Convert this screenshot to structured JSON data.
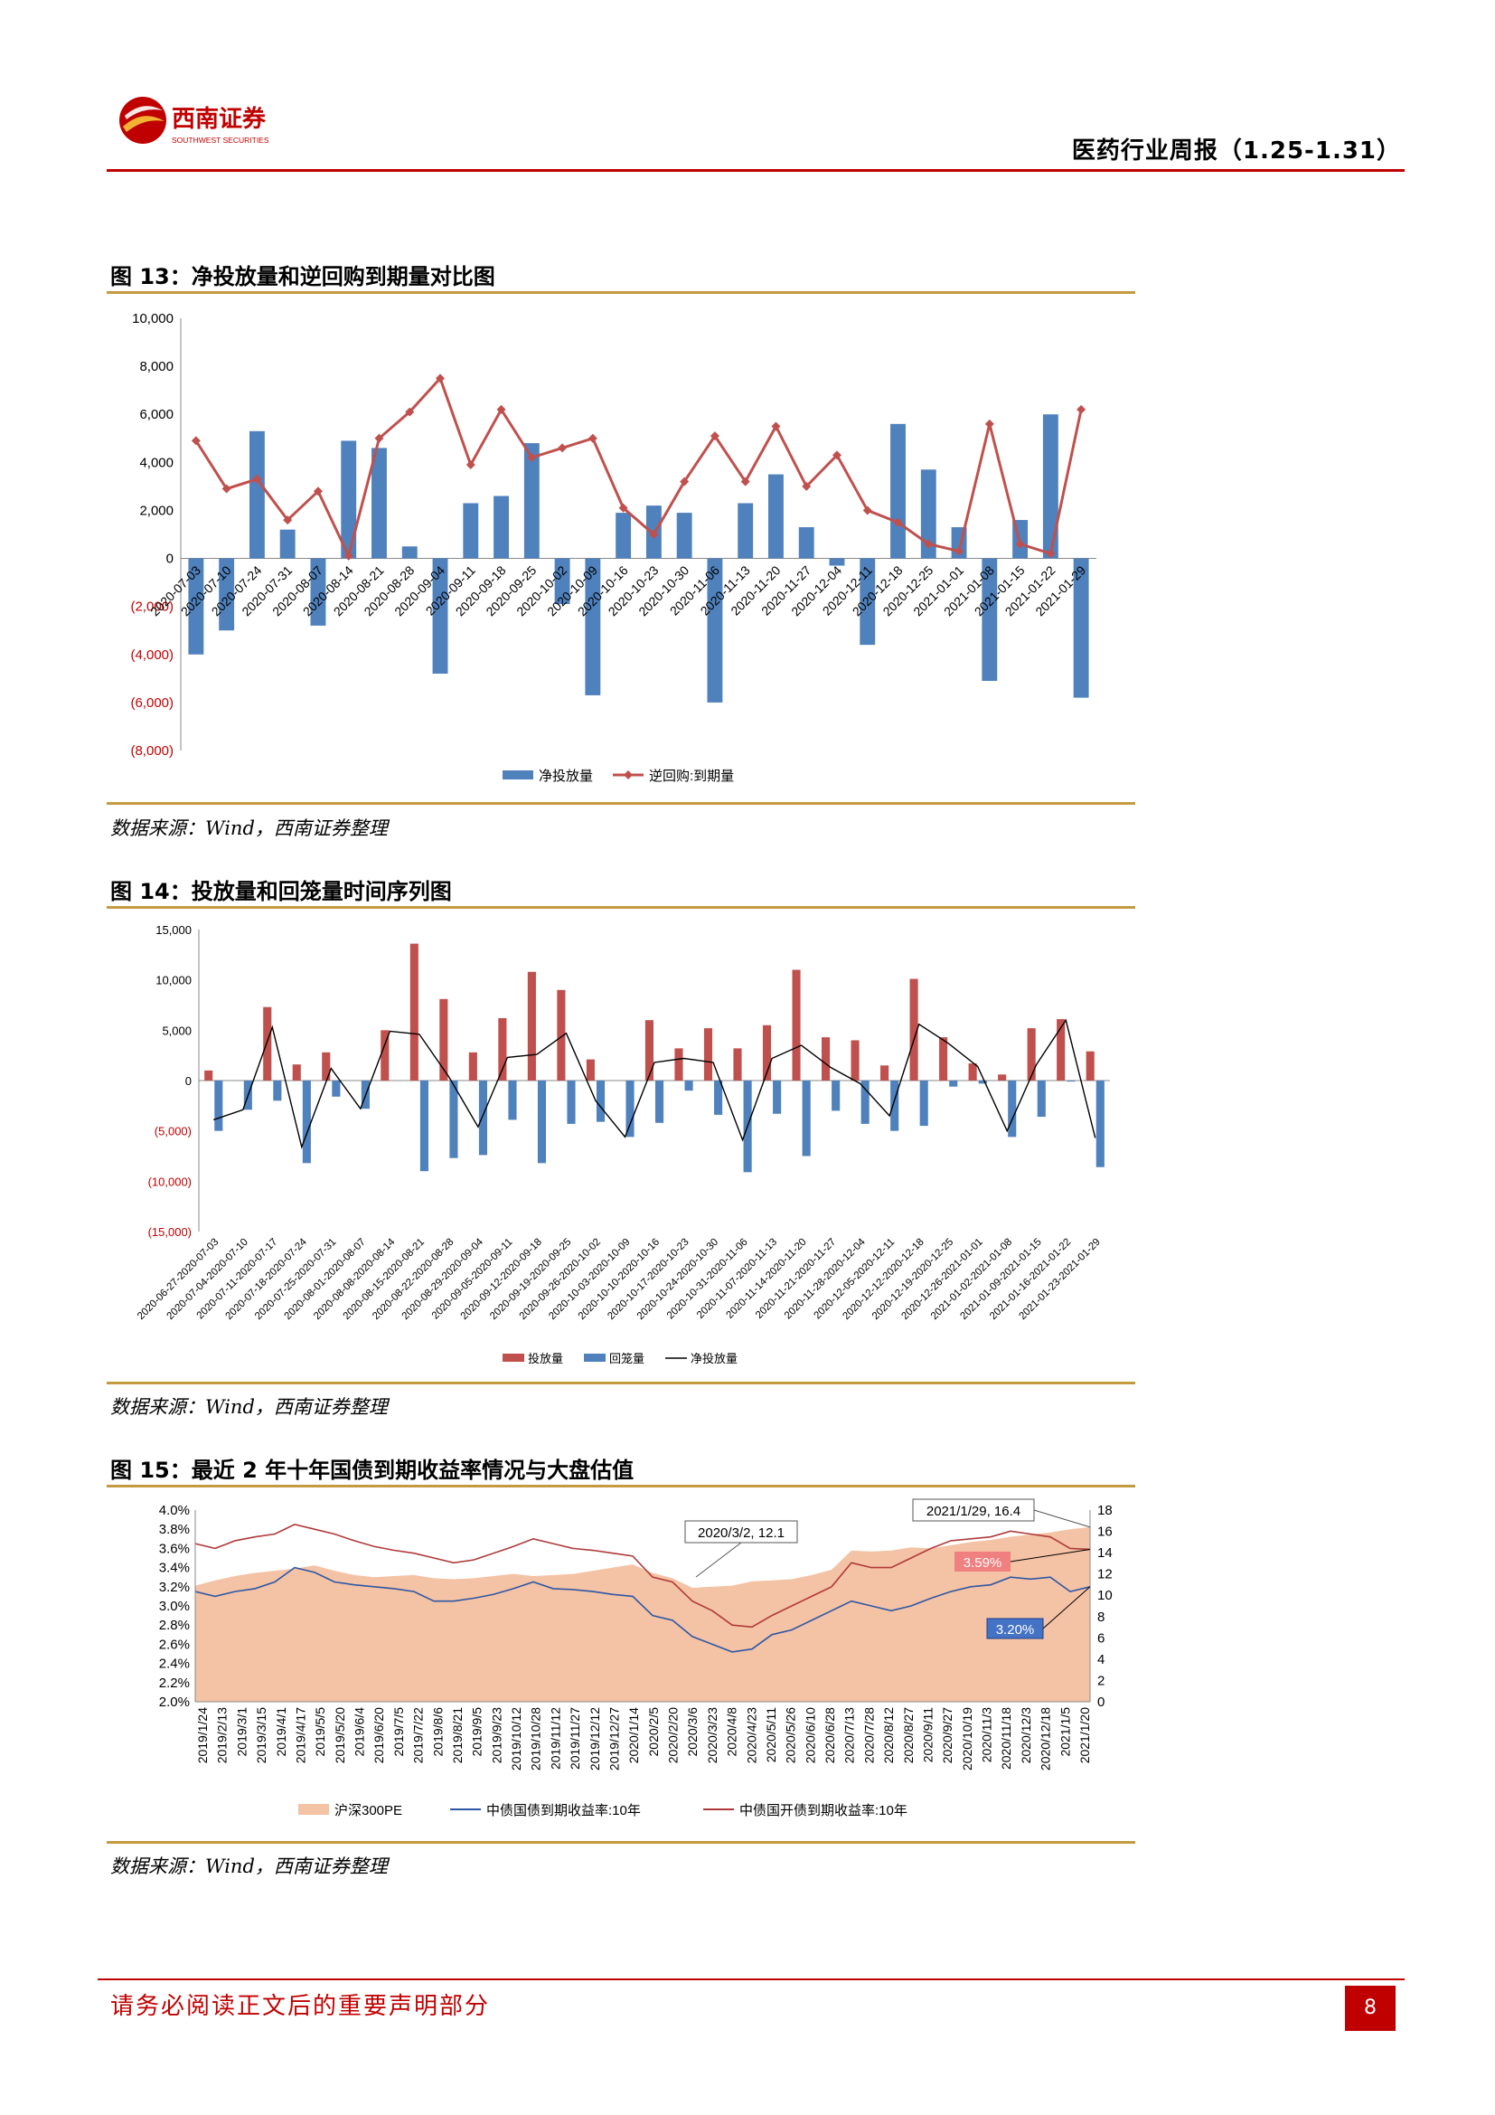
{
  "header": {
    "brand_cn": "西南证券",
    "brand_en": "SOUTHWEST SECURITIES",
    "title": "医药行业周报（1.25-1.31）"
  },
  "figures": [
    {
      "title": "图 13：净投放量和逆回购到期量对比图",
      "source": "数据来源：Wind，西南证券整理",
      "chart_data": {
        "type": "bar",
        "categories": [
          "2020-07-03",
          "2020-07-10",
          "2020-07-24",
          "2020-07-31",
          "2020-08-07",
          "2020-08-14",
          "2020-08-21",
          "2020-08-28",
          "2020-09-04",
          "2020-09-11",
          "2020-09-18",
          "2020-09-25",
          "2020-10-02",
          "2020-10-09",
          "2020-10-16",
          "2020-10-23",
          "2020-10-30",
          "2020-11-06",
          "2020-11-13",
          "2020-11-20",
          "2020-11-27",
          "2020-12-04",
          "2020-12-11",
          "2020-12-18",
          "2020-12-25",
          "2021-01-01",
          "2021-01-08",
          "2021-01-15",
          "2021-01-22",
          "2021-01-29"
        ],
        "y_ticks": [
          "10,000",
          "8,000",
          "6,000",
          "4,000",
          "2,000",
          "0",
          "(2,000)",
          "(4,000)",
          "(6,000)",
          "(8,000)"
        ],
        "ylim": [
          -8000,
          10000
        ],
        "series": [
          {
            "name": "净投放量",
            "kind": "bar",
            "color": "#4f81bd",
            "values": [
              -4000,
              -3000,
              5300,
              1200,
              -2800,
              4900,
              4600,
              500,
              -4800,
              2300,
              2600,
              4800,
              -1900,
              -5700,
              1900,
              2200,
              1900,
              -6000,
              2300,
              3500,
              1300,
              -300,
              -3600,
              5600,
              3700,
              1300,
              -5100,
              1600,
              6000,
              -5800
            ]
          },
          {
            "name": "逆回购:到期量",
            "kind": "line",
            "color": "#c0504d",
            "values": [
              4900,
              2900,
              3300,
              1600,
              2800,
              100,
              5000,
              6100,
              7500,
              3900,
              6200,
              4200,
              4600,
              5000,
              2100,
              1000,
              3200,
              5100,
              3200,
              5500,
              3000,
              4300,
              2000,
              1500,
              600,
              300,
              5600,
              600,
              200,
              6200
            ]
          }
        ],
        "legend": "bottom"
      }
    },
    {
      "title": "图 14：投放量和回笼量时间序列图",
      "source": "数据来源：Wind，西南证券整理",
      "chart_data": {
        "type": "bar",
        "categories": [
          "2020-06-27-2020-07-03",
          "2020-07-04-2020-07-10",
          "2020-07-11-2020-07-17",
          "2020-07-18-2020-07-24",
          "2020-07-25-2020-07-31",
          "2020-08-01-2020-08-07",
          "2020-08-08-2020-08-14",
          "2020-08-15-2020-08-21",
          "2020-08-22-2020-08-28",
          "2020-08-29-2020-09-04",
          "2020-09-05-2020-09-11",
          "2020-09-12-2020-09-18",
          "2020-09-19-2020-09-25",
          "2020-09-26-2020-10-02",
          "2020-10-03-2020-10-09",
          "2020-10-10-2020-10-16",
          "2020-10-17-2020-10-23",
          "2020-10-24-2020-10-30",
          "2020-10-31-2020-11-06",
          "2020-11-07-2020-11-13",
          "2020-11-14-2020-11-20",
          "2020-11-21-2020-11-27",
          "2020-11-28-2020-12-04",
          "2020-12-05-2020-12-11",
          "2020-12-12-2020-12-18",
          "2020-12-19-2020-12-25",
          "2020-12-26-2021-01-01",
          "2021-01-02-2021-01-08",
          "2021-01-09-2021-01-15",
          "2021-01-16-2021-01-22",
          "2021-01-23-2021-01-29"
        ],
        "y_ticks": [
          "15,000",
          "10,000",
          "5,000",
          "0",
          "(5,000)",
          "(10,000)",
          "(15,000)"
        ],
        "ylim": [
          -15000,
          15000
        ],
        "series": [
          {
            "name": "投放量",
            "kind": "bar",
            "color": "#c0504d",
            "values": [
              1000,
              0,
              7300,
              1600,
              2800,
              0,
              5000,
              13600,
              8100,
              2800,
              6200,
              10800,
              9000,
              2100,
              0,
              6000,
              3200,
              5200,
              3200,
              5500,
              11000,
              4300,
              4000,
              1500,
              10100,
              4300,
              1700,
              600,
              5200,
              6100,
              2900
            ]
          },
          {
            "name": "回笼量",
            "kind": "bar",
            "color": "#4f81bd",
            "values": [
              -5000,
              -2900,
              -2000,
              -8200,
              -1600,
              -2800,
              0,
              -9000,
              -7700,
              -7400,
              -3900,
              -8200,
              -4300,
              -4100,
              -5600,
              -4200,
              -1000,
              -3400,
              -9100,
              -3300,
              -7500,
              -3000,
              -4300,
              -5000,
              -4500,
              -600,
              -300,
              -5600,
              -3600,
              -100,
              -8600
            ]
          },
          {
            "name": "净投放量",
            "kind": "line",
            "color": "#000000",
            "values": [
              -3900,
              -2900,
              5300,
              -6600,
              1200,
              -2800,
              4900,
              4600,
              400,
              -4600,
              2300,
              2600,
              4700,
              -2000,
              -5600,
              1800,
              2200,
              1800,
              -5900,
              2200,
              3500,
              1300,
              -300,
              -3500,
              5600,
              3700,
              1400,
              -5000,
              1600,
              6000,
              -5700
            ]
          }
        ],
        "legend": "bottom"
      }
    },
    {
      "title": "图 15：最近 2 年十年国债到期收益率情况与大盘估值",
      "source": "数据来源：Wind，西南证券整理",
      "chart_data": {
        "type": "line",
        "x_ticks": [
          "2019/1/24",
          "2019/2/13",
          "2019/3/1",
          "2019/3/15",
          "2019/4/1",
          "2019/4/17",
          "2019/5/5",
          "2019/5/20",
          "2019/6/4",
          "2019/6/20",
          "2019/7/5",
          "2019/7/22",
          "2019/8/6",
          "2019/8/21",
          "2019/9/5",
          "2019/9/23",
          "2019/10/12",
          "2019/10/28",
          "2019/11/12",
          "2019/11/27",
          "2019/12/12",
          "2019/12/27",
          "2020/1/14",
          "2020/2/5",
          "2020/2/20",
          "2020/3/6",
          "2020/3/23",
          "2020/4/8",
          "2020/4/23",
          "2020/5/11",
          "2020/5/26",
          "2020/6/10",
          "2020/6/28",
          "2020/7/13",
          "2020/7/28",
          "2020/8/12",
          "2020/8/27",
          "2020/9/11",
          "2020/9/27",
          "2020/10/19",
          "2020/11/3",
          "2020/11/18",
          "2020/12/3",
          "2020/12/18",
          "2021/1/5",
          "2021/1/20"
        ],
        "y_left_ticks": [
          "4.0%",
          "3.8%",
          "3.6%",
          "3.4%",
          "3.2%",
          "3.0%",
          "2.8%",
          "2.6%",
          "2.4%",
          "2.2%",
          "2.0%"
        ],
        "y_right_ticks": [
          "18",
          "16",
          "14",
          "12",
          "10",
          "8",
          "6",
          "4",
          "2",
          "0"
        ],
        "ylim_left": [
          2.0,
          4.0
        ],
        "ylim_right": [
          0,
          18
        ],
        "series": [
          {
            "name": "沪深300PE",
            "kind": "area",
            "axis": "right",
            "color": "#f4c2a4",
            "values": [
              10.9,
              11.4,
              11.8,
              12.1,
              12.3,
              12.5,
              12.8,
              12.3,
              11.9,
              11.7,
              11.8,
              11.9,
              11.6,
              11.5,
              11.6,
              11.8,
              12.0,
              11.8,
              11.9,
              12.0,
              12.3,
              12.6,
              12.9,
              12.1,
              11.6,
              10.7,
              10.8,
              10.9,
              11.3,
              11.4,
              11.5,
              11.9,
              12.4,
              14.2,
              14.1,
              14.2,
              14.5,
              14.4,
              14.7,
              15.0,
              15.2,
              15.5,
              15.7,
              15.9,
              16.2,
              16.4
            ]
          },
          {
            "name": "中债国债到期收益率:10年",
            "kind": "line",
            "axis": "left",
            "color": "#2e58a6",
            "values": [
              3.15,
              3.1,
              3.15,
              3.18,
              3.25,
              3.4,
              3.35,
              3.25,
              3.22,
              3.2,
              3.18,
              3.15,
              3.05,
              3.05,
              3.08,
              3.12,
              3.18,
              3.25,
              3.18,
              3.17,
              3.15,
              3.12,
              3.1,
              2.9,
              2.85,
              2.68,
              2.6,
              2.52,
              2.55,
              2.7,
              2.75,
              2.85,
              2.95,
              3.05,
              3.0,
              2.95,
              3.0,
              3.08,
              3.15,
              3.2,
              3.22,
              3.3,
              3.28,
              3.3,
              3.15,
              3.2
            ]
          },
          {
            "name": "中债国开债到期收益率:10年",
            "kind": "line",
            "axis": "left",
            "color": "#b03a3a",
            "values": [
              3.65,
              3.6,
              3.68,
              3.72,
              3.75,
              3.85,
              3.8,
              3.75,
              3.68,
              3.62,
              3.58,
              3.55,
              3.5,
              3.45,
              3.48,
              3.55,
              3.62,
              3.7,
              3.65,
              3.6,
              3.58,
              3.55,
              3.52,
              3.3,
              3.25,
              3.05,
              2.95,
              2.8,
              2.78,
              2.9,
              3.0,
              3.1,
              3.2,
              3.45,
              3.4,
              3.4,
              3.5,
              3.6,
              3.68,
              3.7,
              3.72,
              3.78,
              3.75,
              3.72,
              3.6,
              3.59
            ]
          }
        ],
        "annotations": [
          {
            "text": "2020/3/2, 12.1"
          },
          {
            "text": "2021/1/29, 16.4"
          },
          {
            "text": "3.59%",
            "color": "#f08080"
          },
          {
            "text": "3.20%",
            "color": "#4472c4"
          }
        ],
        "legend": "bottom"
      }
    }
  ],
  "footer": {
    "disclaimer": "请务必阅读正文后的重要声明部分",
    "page_number": "8"
  }
}
